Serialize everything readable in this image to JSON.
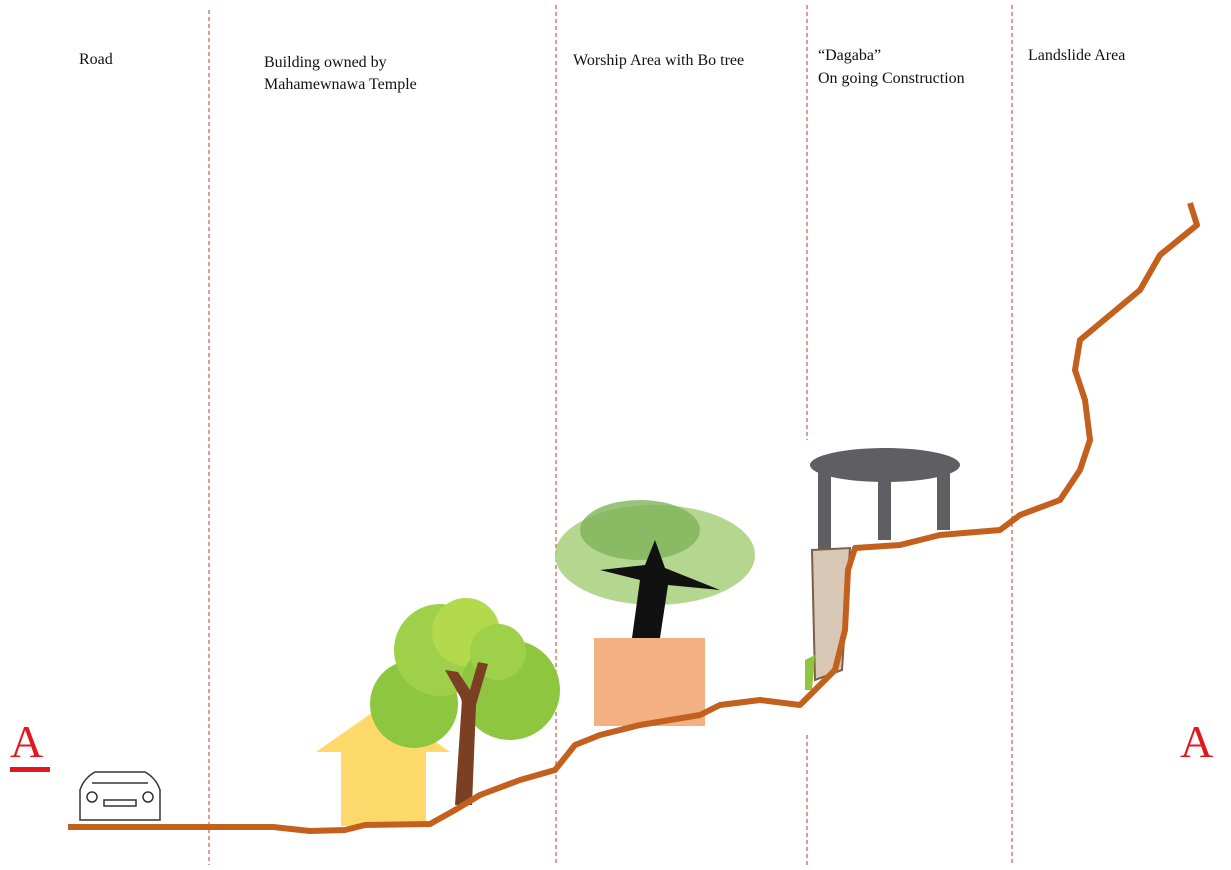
{
  "zones": [
    {
      "lines": [
        "Road"
      ]
    },
    {
      "lines": [
        "Building owned by",
        "Mahamewnawa Temple"
      ]
    },
    {
      "lines": [
        "Worship Area with Bo tree"
      ]
    },
    {
      "lines": [
        "“Dagaba”",
        "On going Construction"
      ]
    },
    {
      "lines": [
        "Landslide Area"
      ]
    }
  ],
  "section_markers": [
    "A",
    "A"
  ]
}
